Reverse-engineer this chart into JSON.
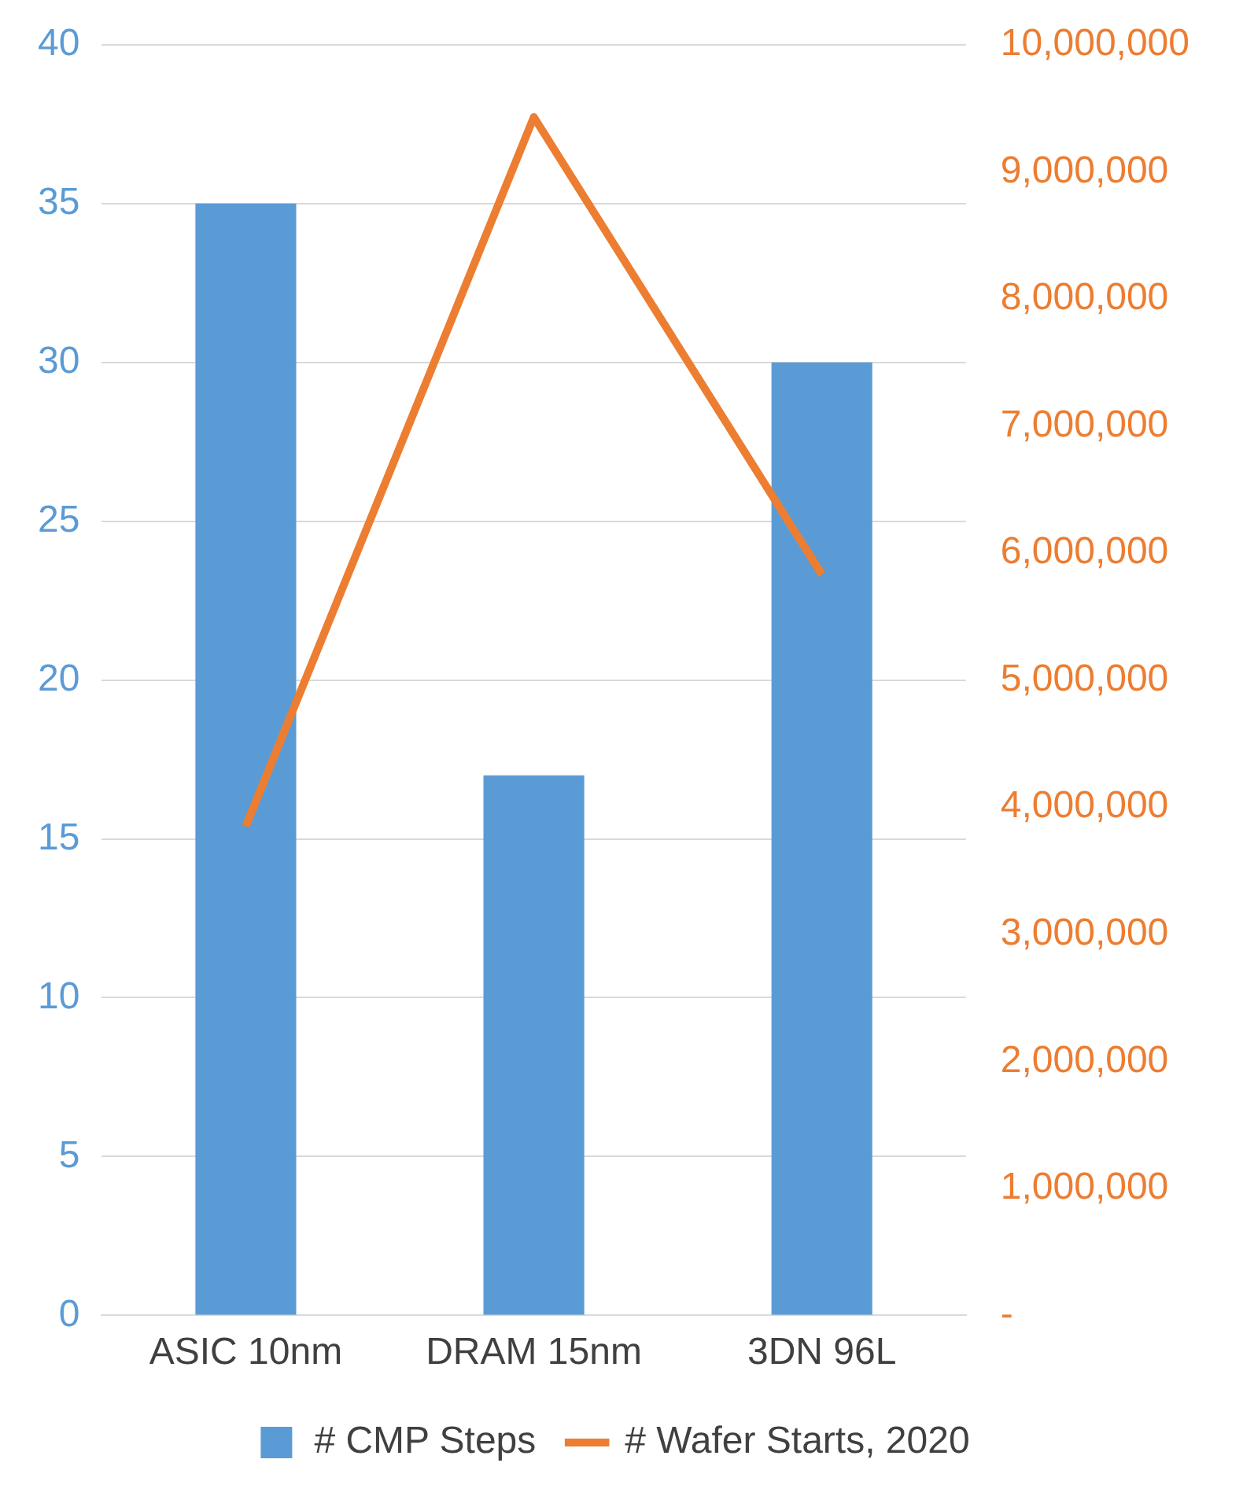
{
  "chart_data": {
    "type": "bar",
    "categories": [
      "ASIC 10nm",
      "DRAM 15nm",
      "3DN 96L"
    ],
    "series": [
      {
        "name": "# CMP Steps",
        "color": "#5b9bd5",
        "values": [
          35,
          17,
          30
        ]
      },
      {
        "name": "# Wafer Starts, 2020",
        "type": "line",
        "axis": "y2",
        "color": "#ed7d31",
        "values": [
          3850000,
          9430000,
          5830000
        ]
      }
    ],
    "ylim": [
      0,
      40
    ],
    "yticks": [
      0,
      5,
      10,
      15,
      20,
      25,
      30,
      35,
      40
    ],
    "y2lim": [
      0,
      10000000
    ],
    "y2ticks": [
      {
        "value": 0,
        "label": "-"
      },
      {
        "value": 1000000,
        "label": "1,000,000"
      },
      {
        "value": 2000000,
        "label": "2,000,000"
      },
      {
        "value": 3000000,
        "label": "3,000,000"
      },
      {
        "value": 4000000,
        "label": "4,000,000"
      },
      {
        "value": 5000000,
        "label": "5,000,000"
      },
      {
        "value": 6000000,
        "label": "6,000,000"
      },
      {
        "value": 7000000,
        "label": "7,000,000"
      },
      {
        "value": 8000000,
        "label": "8,000,000"
      },
      {
        "value": 9000000,
        "label": "9,000,000"
      },
      {
        "value": 10000000,
        "label": "10,000,000"
      }
    ],
    "grid": "y",
    "legend": "bottom",
    "marker": "none",
    "line_style": "solid"
  }
}
